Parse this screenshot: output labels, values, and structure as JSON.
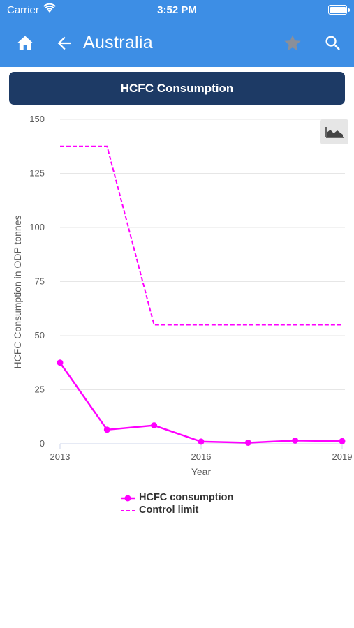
{
  "status_bar": {
    "carrier": "Carrier",
    "time": "3:52 PM"
  },
  "app_bar": {
    "title": "Australia"
  },
  "card": {
    "title": "HCFC Consumption"
  },
  "colors": {
    "app_bar": "#3d8ee5",
    "card_header": "#1d3a65",
    "series": "#ff00ff"
  },
  "icons": {
    "home": "home-icon",
    "back": "back-arrow-icon",
    "favorite": "star-icon",
    "search": "search-icon",
    "chart_type": "area-chart-icon"
  },
  "chart_data": {
    "type": "line",
    "xlabel": "Year",
    "ylabel": "HCFC Consumption in ODP tonnes",
    "x_ticks": [
      "2013",
      "2016",
      "2019"
    ],
    "y_ticks": [
      "0",
      "25",
      "50",
      "75",
      "100",
      "125",
      "150"
    ],
    "xlim": [
      2013,
      2019
    ],
    "ylim": [
      0,
      150
    ],
    "grid": true,
    "legend_position": "bottom",
    "series": [
      {
        "name": "HCFC consumption",
        "style": "solid-markers",
        "x": [
          2013,
          2014,
          2015,
          2016,
          2017,
          2018,
          2019
        ],
        "values": [
          37.5,
          6.5,
          8.5,
          1.0,
          0.5,
          1.5,
          1.2
        ]
      },
      {
        "name": "Control limit",
        "style": "dashed",
        "x": [
          2013,
          2014,
          2015,
          2016,
          2017,
          2018,
          2019
        ],
        "values": [
          137.5,
          137.5,
          55.0,
          55.0,
          55.0,
          55.0,
          55.0
        ]
      }
    ]
  }
}
